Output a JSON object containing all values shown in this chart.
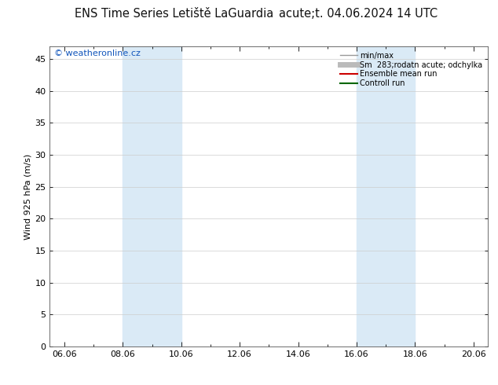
{
  "title_left": "ENS Time Series Letiště LaGuardia",
  "title_right": "acute;t. 04.06.2024 14 UTC",
  "ylabel": "Wind 925 hPa (m/s)",
  "watermark": "© weatheronline.cz",
  "xtick_labels": [
    "06.06",
    "08.06",
    "10.06",
    "12.06",
    "14.06",
    "16.06",
    "18.06",
    "20.06"
  ],
  "xtick_positions": [
    0,
    2,
    4,
    6,
    8,
    10,
    12,
    14
  ],
  "xlim": [
    -0.5,
    14.5
  ],
  "ylim": [
    0,
    47
  ],
  "yticks": [
    0,
    5,
    10,
    15,
    20,
    25,
    30,
    35,
    40,
    45
  ],
  "shaded_bands": [
    {
      "x_start": 2,
      "x_end": 4
    },
    {
      "x_start": 10,
      "x_end": 12
    }
  ],
  "shade_color": "#daeaf6",
  "legend_entries": [
    {
      "label": "min/max",
      "color": "#999999",
      "lw": 1.0
    },
    {
      "label": "Sm  283;rodatn acute; odchylka",
      "color": "#bbbbbb",
      "lw": 5.0
    },
    {
      "label": "Ensemble mean run",
      "color": "#cc0000",
      "lw": 1.5
    },
    {
      "label": "Controll run",
      "color": "#006600",
      "lw": 1.5
    }
  ],
  "background_color": "#ffffff",
  "plot_bg_color": "#ffffff",
  "title_fontsize": 10.5,
  "axis_label_fontsize": 8,
  "tick_fontsize": 8,
  "watermark_color": "#1155bb",
  "watermark_fontsize": 8
}
